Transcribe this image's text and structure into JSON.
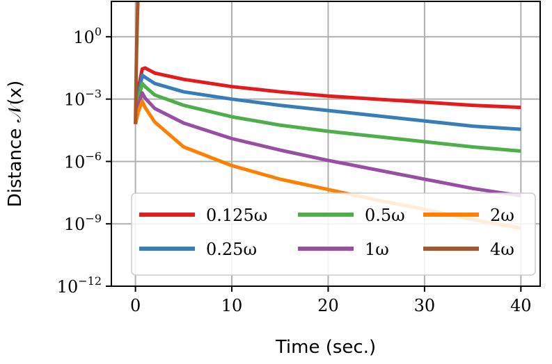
{
  "chart_data": {
    "type": "line",
    "xlabel": "Time (sec.)",
    "ylabel": "Distance 𝒩(x)",
    "xlim": [
      -2.5,
      42
    ],
    "ylim": [
      -12,
      1.7
    ],
    "yscale": "log",
    "grid": true,
    "legend_position": "bottom",
    "x_ticks": [
      0,
      10,
      20,
      30,
      40
    ],
    "x_tick_labels": [
      "0",
      "10",
      "20",
      "30",
      "40"
    ],
    "y_ticks": [
      0,
      -3,
      -6,
      -9,
      -12
    ],
    "y_tick_labels": [
      {
        "base": "10",
        "exp": "0"
      },
      {
        "base": "10",
        "exp": "−3"
      },
      {
        "base": "10",
        "exp": "−6"
      },
      {
        "base": "10",
        "exp": "−9"
      },
      {
        "base": "10",
        "exp": "−12"
      }
    ],
    "series": [
      {
        "name": "0.125ω",
        "color": "#e41a1c",
        "x": [
          0,
          0.3,
          0.7,
          1,
          2,
          5,
          10,
          15,
          20,
          25,
          30,
          35,
          40
        ],
        "y": [
          -4.2,
          -2.5,
          -1.55,
          -1.5,
          -1.75,
          -2.05,
          -2.4,
          -2.65,
          -2.85,
          -3.0,
          -3.15,
          -3.3,
          -3.4
        ]
      },
      {
        "name": "0.25ω",
        "color": "#377eb8",
        "x": [
          0,
          0.3,
          0.7,
          1,
          2,
          5,
          10,
          15,
          20,
          25,
          30,
          35,
          40
        ],
        "y": [
          -4.2,
          -2.8,
          -1.85,
          -1.95,
          -2.25,
          -2.65,
          -3.0,
          -3.3,
          -3.55,
          -3.8,
          -4.05,
          -4.3,
          -4.45
        ]
      },
      {
        "name": "0.5ω",
        "color": "#4daf4a",
        "x": [
          0,
          0.3,
          0.7,
          1,
          2,
          5,
          10,
          15,
          20,
          25,
          30,
          35,
          40
        ],
        "y": [
          -4.2,
          -3.0,
          -2.25,
          -2.4,
          -2.8,
          -3.3,
          -3.85,
          -4.25,
          -4.55,
          -4.8,
          -5.05,
          -5.3,
          -5.5
        ]
      },
      {
        "name": "1ω",
        "color": "#984ea3",
        "x": [
          0,
          0.3,
          0.7,
          1,
          2,
          5,
          10,
          15,
          20,
          25,
          30,
          35,
          40
        ],
        "y": [
          -4.2,
          -3.3,
          -2.7,
          -2.95,
          -3.45,
          -4.15,
          -4.9,
          -5.45,
          -5.95,
          -6.4,
          -6.85,
          -7.3,
          -7.65
        ]
      },
      {
        "name": "2ω",
        "color": "#ff7f00",
        "x": [
          0,
          0.3,
          0.7,
          1,
          2,
          5,
          10,
          15,
          20,
          25,
          30,
          35,
          40
        ],
        "y": [
          -4.2,
          -3.6,
          -3.1,
          -3.4,
          -4.1,
          -5.3,
          -6.2,
          -6.85,
          -7.35,
          -7.85,
          -8.3,
          -8.8,
          -9.2
        ]
      },
      {
        "name": "4ω",
        "color": "#a65628",
        "x": [
          0,
          0.1,
          0.2,
          0.25
        ],
        "y": [
          -4.2,
          -1.0,
          1.0,
          1.7
        ]
      }
    ]
  }
}
